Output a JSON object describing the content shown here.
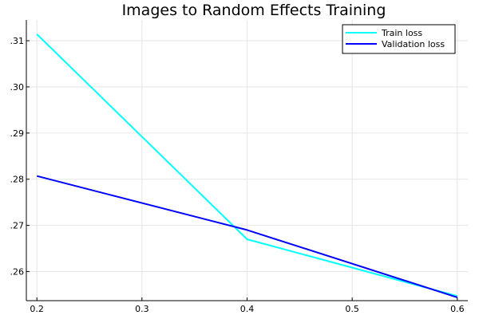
{
  "chart_data": {
    "type": "line",
    "title": "Images to Random Effects Training",
    "xlabel": "",
    "ylabel": "",
    "xlim": [
      0.19,
      0.61
    ],
    "ylim": [
      0.2537,
      0.3145
    ],
    "xticks": [
      0.2,
      0.3,
      0.4,
      0.5,
      0.6
    ],
    "xtick_labels": [
      "0.2",
      "0.3",
      "0.4",
      "0.5",
      "0.6"
    ],
    "yticks": [
      0.26,
      0.27,
      0.28,
      0.29,
      0.3,
      0.31
    ],
    "ytick_labels": [
      ".26",
      ".27",
      ".28",
      ".29",
      ".30",
      ".31"
    ],
    "grid": true,
    "legend_position": "top-right",
    "x": [
      0.2,
      0.4,
      0.6
    ],
    "series": [
      {
        "name": "Train loss",
        "color": "#00ffff",
        "values": [
          0.3114,
          0.267,
          0.2547
        ]
      },
      {
        "name": "Validation loss",
        "color": "#0000ff",
        "values": [
          0.2807,
          0.269,
          0.2544
        ]
      }
    ]
  }
}
